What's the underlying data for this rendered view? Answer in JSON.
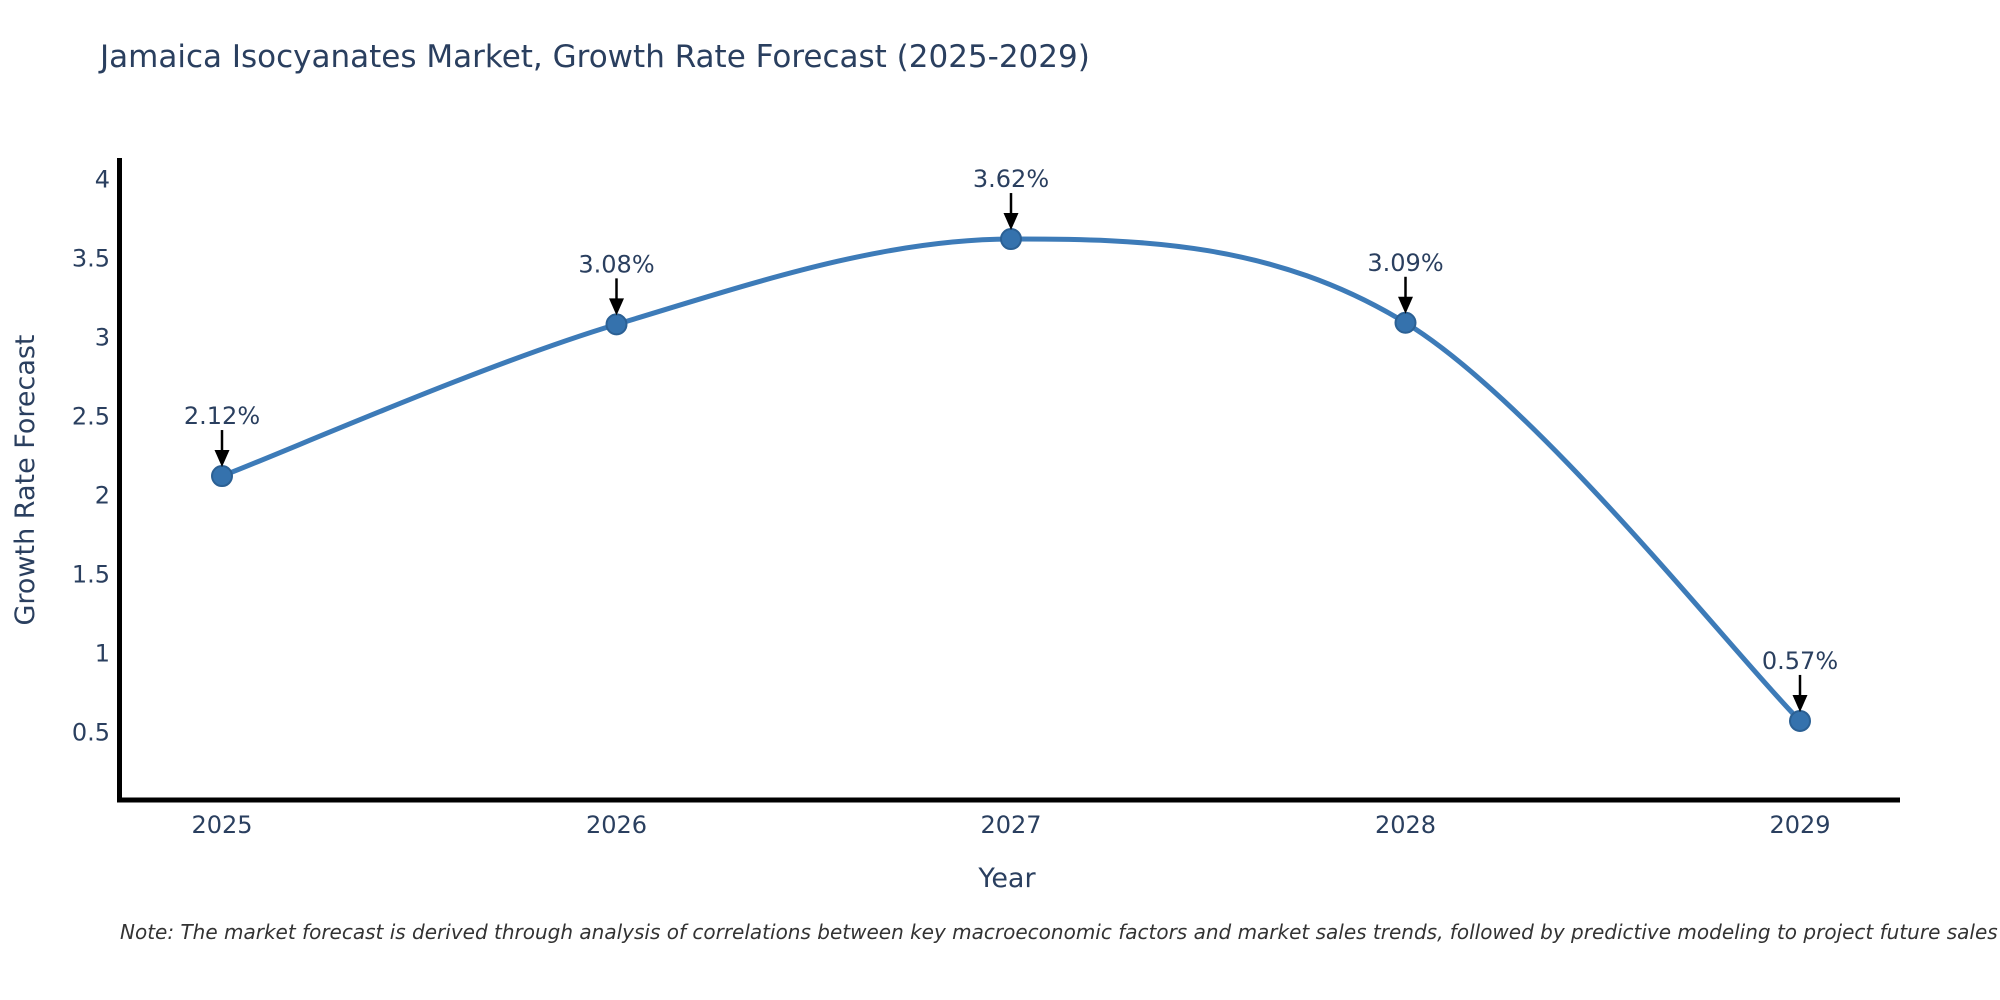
{
  "title": "Jamaica Isocyanates Market, Growth Rate Forecast (2025-2029)",
  "note": "Note: The market forecast is derived through analysis of correlations between key macroeconomic factors and market sales trends, followed by predictive modeling to project future sales",
  "chart_data": {
    "type": "line",
    "title": "Jamaica Isocyanates Market, Growth Rate Forecast (2025-2029)",
    "xlabel": "Year",
    "ylabel": "Growth Rate Forecast",
    "x": [
      "2025",
      "2026",
      "2027",
      "2028",
      "2029"
    ],
    "values": [
      2.12,
      3.08,
      3.62,
      3.09,
      0.57
    ],
    "point_labels": [
      "2.12%",
      "3.08%",
      "3.62%",
      "3.09%",
      "0.57%"
    ],
    "yticks": [
      0.5,
      1,
      1.5,
      2,
      2.5,
      3,
      3.5,
      4
    ],
    "ylim": [
      0.05,
      4.15
    ],
    "line_shape": "spline",
    "grid": false,
    "legend": "none",
    "colors": {
      "line": "#3d7bb8",
      "marker_fill": "#3572ad",
      "marker_stroke": "#2b6094",
      "axis": "#000000",
      "text": "#2a3f5f",
      "annotation_arrow": "#000000"
    }
  }
}
